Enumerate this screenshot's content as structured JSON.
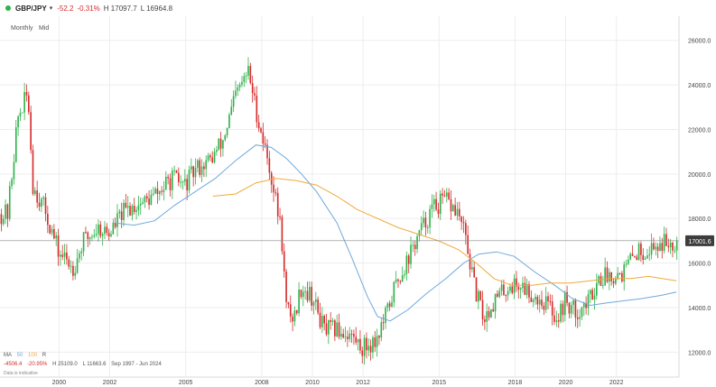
{
  "header": {
    "symbol": "GBP/JPY",
    "status_color": "#2fb24a",
    "change": "-52.2",
    "change_pct": "-0.31%",
    "high": "H 17097.7",
    "low": "L 16964.8"
  },
  "toolbar": {
    "interval": "Monthly",
    "price_type": "Mid"
  },
  "footer": {
    "ma_label": "MA",
    "ma_50": "50",
    "ma_100": "100",
    "ma_extra": "R",
    "change": "-4506.4",
    "change_pct": "-20.95%",
    "high": "H 25109.0",
    "low": "L 11663.6",
    "range": "Sep 1997 - Jun 2024",
    "note": "Data is indicative"
  },
  "colors": {
    "up": "#2fb24a",
    "down": "#d62c2c",
    "ma50": "#6fa8dc",
    "ma100": "#f0a93a",
    "grid": "#ededed",
    "axis_text": "#444"
  },
  "chart_data": {
    "type": "candlestick",
    "frequency": "monthly",
    "x_ticks": [
      "2000",
      "2002",
      "2005",
      "2008",
      "2010",
      "2012",
      "2015",
      "2018",
      "2020",
      "2022"
    ],
    "y_ticks": [
      "12000.0",
      "14000.0",
      "16000.0",
      "18000.0",
      "20000.0",
      "22000.0",
      "24000.0",
      "26000.0"
    ],
    "current_price_label": "17001.6",
    "current_price": 17001.6,
    "ylim": [
      11000,
      27000
    ],
    "xlim": [
      1997.7,
      2024.5
    ],
    "close_path": [
      [
        1998.0,
        18200
      ],
      [
        1998.4,
        22500
      ],
      [
        1998.8,
        23600
      ],
      [
        1999.0,
        19500
      ],
      [
        1999.5,
        18300
      ],
      [
        2000.0,
        16500
      ],
      [
        2000.6,
        15800
      ],
      [
        2001.0,
        17000
      ],
      [
        2001.6,
        17600
      ],
      [
        2002.0,
        17300
      ],
      [
        2002.5,
        18200
      ],
      [
        2003.0,
        18600
      ],
      [
        2003.5,
        18800
      ],
      [
        2004.0,
        19200
      ],
      [
        2004.5,
        19800
      ],
      [
        2005.0,
        19500
      ],
      [
        2005.5,
        20300
      ],
      [
        2006.0,
        20600
      ],
      [
        2006.5,
        21500
      ],
      [
        2007.0,
        23500
      ],
      [
        2007.5,
        24600
      ],
      [
        2007.9,
        22400
      ],
      [
        2008.3,
        20500
      ],
      [
        2008.8,
        17500
      ],
      [
        2009.0,
        14000
      ],
      [
        2009.3,
        13500
      ],
      [
        2009.6,
        15000
      ],
      [
        2010.0,
        14500
      ],
      [
        2010.5,
        13000
      ],
      [
        2011.0,
        13000
      ],
      [
        2011.5,
        12800
      ],
      [
        2012.0,
        12200
      ],
      [
        2012.5,
        12500
      ],
      [
        2012.9,
        13500
      ],
      [
        2013.3,
        15000
      ],
      [
        2013.8,
        16200
      ],
      [
        2014.2,
        17200
      ],
      [
        2014.8,
        18500
      ],
      [
        2015.3,
        18800
      ],
      [
        2015.8,
        18200
      ],
      [
        2016.1,
        17000
      ],
      [
        2016.4,
        15000
      ],
      [
        2016.8,
        13500
      ],
      [
        2017.2,
        14300
      ],
      [
        2017.8,
        15000
      ],
      [
        2018.3,
        15000
      ],
      [
        2018.8,
        14500
      ],
      [
        2019.3,
        14200
      ],
      [
        2019.7,
        13500
      ],
      [
        2020.0,
        14300
      ],
      [
        2020.4,
        13800
      ],
      [
        2020.9,
        14200
      ],
      [
        2021.3,
        15300
      ],
      [
        2021.8,
        15500
      ],
      [
        2022.3,
        15600
      ],
      [
        2022.8,
        16500
      ],
      [
        2023.3,
        16600
      ],
      [
        2023.8,
        16900
      ],
      [
        2024.4,
        17000
      ]
    ],
    "ma50_path": [
      [
        2002.2,
        17800
      ],
      [
        2003.0,
        17700
      ],
      [
        2003.8,
        17900
      ],
      [
        2004.6,
        18600
      ],
      [
        2005.4,
        19200
      ],
      [
        2006.2,
        19800
      ],
      [
        2007.0,
        20600
      ],
      [
        2007.8,
        21300
      ],
      [
        2008.4,
        21200
      ],
      [
        2009.0,
        20700
      ],
      [
        2009.6,
        20000
      ],
      [
        2010.2,
        19200
      ],
      [
        2011.0,
        17800
      ],
      [
        2011.6,
        16200
      ],
      [
        2012.2,
        14500
      ],
      [
        2012.6,
        13600
      ],
      [
        2013.1,
        13400
      ],
      [
        2013.8,
        13900
      ],
      [
        2014.5,
        14600
      ],
      [
        2015.3,
        15300
      ],
      [
        2016.0,
        16000
      ],
      [
        2016.6,
        16400
      ],
      [
        2017.3,
        16500
      ],
      [
        2018.0,
        16300
      ],
      [
        2018.8,
        15600
      ],
      [
        2019.6,
        15000
      ],
      [
        2020.3,
        14400
      ],
      [
        2021.0,
        14100
      ],
      [
        2021.6,
        14200
      ],
      [
        2022.3,
        14300
      ],
      [
        2023.0,
        14400
      ],
      [
        2023.8,
        14550
      ],
      [
        2024.4,
        14700
      ]
    ],
    "ma100_path": [
      [
        2006.1,
        19000
      ],
      [
        2007.0,
        19100
      ],
      [
        2007.8,
        19600
      ],
      [
        2008.6,
        19800
      ],
      [
        2009.4,
        19700
      ],
      [
        2010.2,
        19500
      ],
      [
        2011.0,
        19000
      ],
      [
        2011.8,
        18400
      ],
      [
        2012.6,
        18000
      ],
      [
        2013.4,
        17600
      ],
      [
        2014.2,
        17300
      ],
      [
        2015.0,
        17000
      ],
      [
        2015.8,
        16600
      ],
      [
        2016.5,
        16000
      ],
      [
        2017.2,
        15300
      ],
      [
        2017.9,
        15000
      ],
      [
        2018.7,
        15000
      ],
      [
        2019.4,
        15100
      ],
      [
        2020.2,
        15100
      ],
      [
        2021.0,
        15200
      ],
      [
        2021.8,
        15300
      ],
      [
        2022.6,
        15300
      ],
      [
        2023.3,
        15400
      ],
      [
        2024.4,
        15200
      ]
    ]
  }
}
